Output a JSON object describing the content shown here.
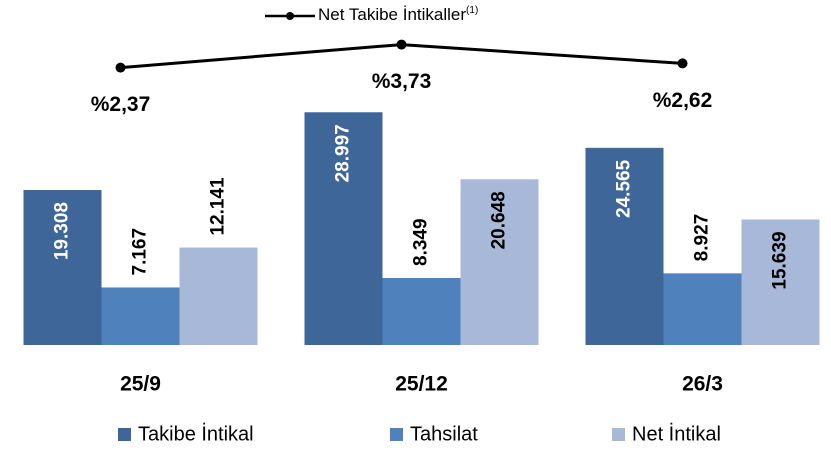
{
  "chart_data": {
    "type": "bar",
    "categories": [
      "25/9",
      "25/12",
      "26/3"
    ],
    "series": [
      {
        "name": "Takibe İntikal",
        "color": "#3f6699",
        "values": [
          19308,
          28997,
          24565
        ],
        "value_labels": [
          "19.308",
          "28.997",
          "24.565"
        ]
      },
      {
        "name": "Tahsilat",
        "color": "#4f81bd",
        "values": [
          7167,
          8349,
          8927
        ],
        "value_labels": [
          "7.167",
          "8.349",
          "8.927"
        ]
      },
      {
        "name": "Net İntikal",
        "color": "#a8b8d8",
        "values": [
          12141,
          20648,
          15639
        ],
        "value_labels": [
          "12.141",
          "20.648",
          "15.639"
        ]
      },
      {
        "name": "Net Takibe İntikaller",
        "name_note": "(1)",
        "type": "line",
        "axis": "y2",
        "color": "#000000",
        "values": [
          2.37,
          3.73,
          2.62
        ],
        "value_labels": [
          "%2,37",
          "%3,73",
          "%2,62"
        ]
      }
    ],
    "ylim": [
      0,
      38000
    ],
    "y2lim": [
      -14,
      4
    ],
    "grid": false
  }
}
